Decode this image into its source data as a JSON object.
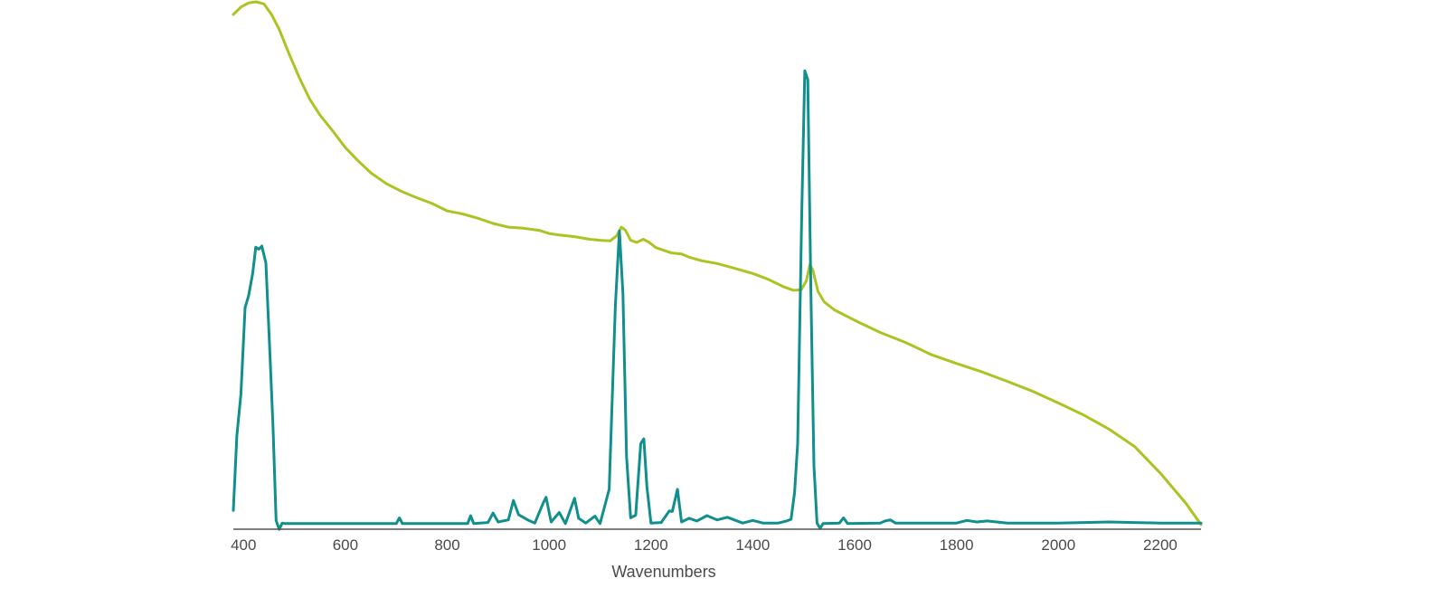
{
  "chart_data": {
    "type": "line",
    "title": "",
    "xlabel": "Wavenumbers",
    "ylabel": "",
    "xlim": [
      380,
      2280
    ],
    "ylim": [
      0,
      100
    ],
    "x_ticks": [
      400,
      600,
      800,
      1000,
      1200,
      1400,
      1600,
      1800,
      2000,
      2200
    ],
    "grid": false,
    "legend": "none",
    "series": [
      {
        "color": "#a8c523",
        "points": [
          [
            380,
            97.6
          ],
          [
            395,
            99.0
          ],
          [
            410,
            99.8
          ],
          [
            425,
            100.0
          ],
          [
            440,
            99.6
          ],
          [
            455,
            97.6
          ],
          [
            470,
            94.8
          ],
          [
            490,
            90.0
          ],
          [
            510,
            85.5
          ],
          [
            530,
            81.5
          ],
          [
            550,
            78.5
          ],
          [
            575,
            75.5
          ],
          [
            600,
            72.3
          ],
          [
            625,
            69.8
          ],
          [
            650,
            67.5
          ],
          [
            680,
            65.5
          ],
          [
            710,
            64.0
          ],
          [
            740,
            62.8
          ],
          [
            770,
            61.7
          ],
          [
            800,
            60.3
          ],
          [
            830,
            59.7
          ],
          [
            860,
            58.9
          ],
          [
            890,
            57.9
          ],
          [
            920,
            57.2
          ],
          [
            950,
            57.0
          ],
          [
            980,
            56.6
          ],
          [
            1000,
            56.0
          ],
          [
            1020,
            55.7
          ],
          [
            1050,
            55.4
          ],
          [
            1080,
            54.9
          ],
          [
            1100,
            54.7
          ],
          [
            1120,
            54.6
          ],
          [
            1132,
            55.5
          ],
          [
            1142,
            57.2
          ],
          [
            1150,
            56.6
          ],
          [
            1160,
            54.7
          ],
          [
            1172,
            54.3
          ],
          [
            1185,
            54.9
          ],
          [
            1195,
            54.4
          ],
          [
            1210,
            53.3
          ],
          [
            1240,
            52.3
          ],
          [
            1260,
            52.1
          ],
          [
            1275,
            51.5
          ],
          [
            1300,
            50.8
          ],
          [
            1330,
            50.3
          ],
          [
            1360,
            49.5
          ],
          [
            1400,
            48.4
          ],
          [
            1430,
            47.3
          ],
          [
            1460,
            45.9
          ],
          [
            1480,
            45.2
          ],
          [
            1495,
            45.3
          ],
          [
            1505,
            47.0
          ],
          [
            1512,
            50.1
          ],
          [
            1518,
            49.0
          ],
          [
            1528,
            45.0
          ],
          [
            1540,
            43.0
          ],
          [
            1560,
            41.5
          ],
          [
            1600,
            39.5
          ],
          [
            1650,
            37.2
          ],
          [
            1700,
            35.3
          ],
          [
            1750,
            33.0
          ],
          [
            1800,
            31.3
          ],
          [
            1850,
            29.7
          ],
          [
            1900,
            27.9
          ],
          [
            1950,
            26.0
          ],
          [
            2000,
            23.8
          ],
          [
            2050,
            21.5
          ],
          [
            2100,
            18.8
          ],
          [
            2150,
            15.5
          ],
          [
            2200,
            10.5
          ],
          [
            2250,
            4.8
          ],
          [
            2280,
            0.7
          ]
        ]
      },
      {
        "color": "#108f8c",
        "points": [
          [
            380,
            3.4
          ],
          [
            387,
            17.6
          ],
          [
            395,
            25.5
          ],
          [
            403,
            41.9
          ],
          [
            410,
            44.2
          ],
          [
            418,
            48.4
          ],
          [
            424,
            53.4
          ],
          [
            430,
            53.0
          ],
          [
            436,
            53.6
          ],
          [
            444,
            50.4
          ],
          [
            452,
            33.0
          ],
          [
            458,
            19.2
          ],
          [
            464,
            1.5
          ],
          [
            470,
            -0.2
          ],
          [
            476,
            1.0
          ],
          [
            482,
            0.9
          ],
          [
            500,
            0.9
          ],
          [
            700,
            0.9
          ],
          [
            706,
            2.0
          ],
          [
            712,
            0.9
          ],
          [
            840,
            0.9
          ],
          [
            846,
            2.4
          ],
          [
            852,
            0.9
          ],
          [
            880,
            1.1
          ],
          [
            890,
            2.9
          ],
          [
            900,
            1.2
          ],
          [
            920,
            1.6
          ],
          [
            930,
            5.3
          ],
          [
            940,
            2.6
          ],
          [
            960,
            1.5
          ],
          [
            972,
            1.0
          ],
          [
            988,
            4.7
          ],
          [
            994,
            5.9
          ],
          [
            1004,
            1.2
          ],
          [
            1020,
            3.0
          ],
          [
            1032,
            0.9
          ],
          [
            1050,
            5.7
          ],
          [
            1058,
            1.9
          ],
          [
            1072,
            1.0
          ],
          [
            1090,
            2.3
          ],
          [
            1100,
            0.9
          ],
          [
            1118,
            7.4
          ],
          [
            1130,
            42.2
          ],
          [
            1138,
            56.5
          ],
          [
            1145,
            44.6
          ],
          [
            1152,
            13.6
          ],
          [
            1160,
            2.0
          ],
          [
            1170,
            2.5
          ],
          [
            1180,
            16.1
          ],
          [
            1186,
            17.0
          ],
          [
            1192,
            7.9
          ],
          [
            1200,
            1.0
          ],
          [
            1220,
            1.1
          ],
          [
            1236,
            3.3
          ],
          [
            1242,
            3.2
          ],
          [
            1252,
            7.4
          ],
          [
            1260,
            1.2
          ],
          [
            1275,
            1.9
          ],
          [
            1290,
            1.4
          ],
          [
            1310,
            2.4
          ],
          [
            1330,
            1.6
          ],
          [
            1350,
            2.1
          ],
          [
            1380,
            1.0
          ],
          [
            1400,
            1.5
          ],
          [
            1420,
            1.0
          ],
          [
            1450,
            1.0
          ],
          [
            1466,
            1.4
          ],
          [
            1475,
            1.7
          ],
          [
            1482,
            6.8
          ],
          [
            1488,
            16.1
          ],
          [
            1496,
            59.6
          ],
          [
            1502,
            86.9
          ],
          [
            1508,
            85.2
          ],
          [
            1514,
            45.4
          ],
          [
            1520,
            11.9
          ],
          [
            1526,
            1.0
          ],
          [
            1532,
            0.0
          ],
          [
            1538,
            0.9
          ],
          [
            1570,
            1.0
          ],
          [
            1578,
            2.0
          ],
          [
            1586,
            0.9
          ],
          [
            1650,
            1.0
          ],
          [
            1660,
            1.4
          ],
          [
            1670,
            1.6
          ],
          [
            1680,
            1.0
          ],
          [
            1800,
            1.0
          ],
          [
            1820,
            1.5
          ],
          [
            1840,
            1.2
          ],
          [
            1860,
            1.4
          ],
          [
            1900,
            1.0
          ],
          [
            2000,
            1.0
          ],
          [
            2100,
            1.2
          ],
          [
            2200,
            1.0
          ],
          [
            2280,
            1.0
          ]
        ]
      }
    ]
  }
}
